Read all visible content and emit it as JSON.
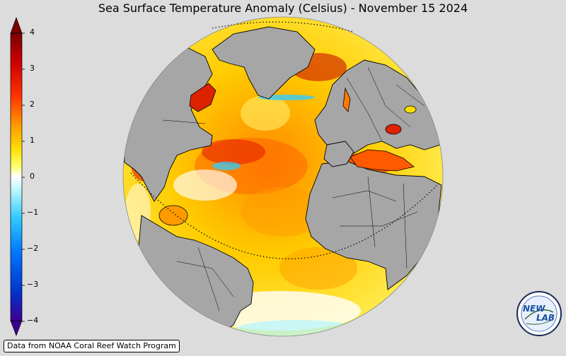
{
  "title": "Sea Surface Temperature Anomaly (Celsius) - November 15 2024",
  "colorbar": {
    "min": -4,
    "max": 4,
    "ticks": [
      "4",
      "3",
      "2",
      "1",
      "0",
      "−1",
      "−2",
      "−3",
      "−4"
    ],
    "extend": "both",
    "colors": [
      "#3b0091",
      "#0033cc",
      "#0077ff",
      "#33ccff",
      "#b3f5ff",
      "#ffffff",
      "#ffff66",
      "#ffdd00",
      "#ff9900",
      "#ff3300",
      "#cc0000",
      "#7a0000"
    ]
  },
  "map": {
    "projection": "orthographic",
    "land_color": "#a6a6a6",
    "ocean_background": "#ffd21a",
    "coastline_color": "#000000"
  },
  "credit": "Data from NOAA Coral Reef Watch Program",
  "logo": {
    "text_a": "NEW",
    "text_b": "LAB"
  }
}
